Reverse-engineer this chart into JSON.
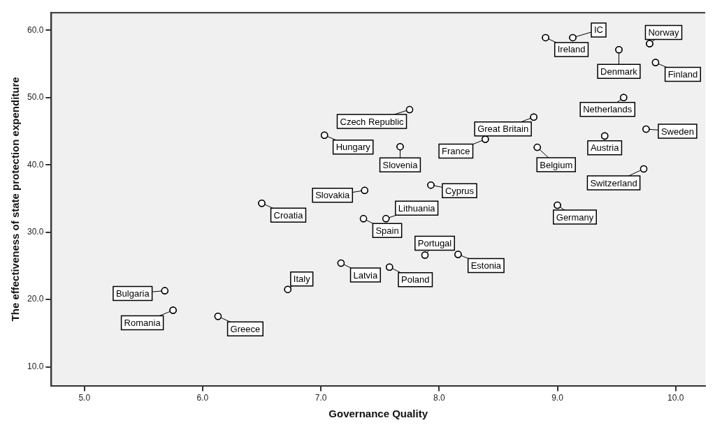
{
  "chart_data": {
    "type": "scatter",
    "xlabel": "Governance Quality",
    "ylabel": "The effectiveness of state protection expenditure",
    "x": [
      9.13,
      8.9,
      9.78,
      9.52,
      9.83,
      9.56,
      7.75,
      8.8,
      9.75,
      7.03,
      9.4,
      8.39,
      7.67,
      8.83,
      9.73,
      7.93,
      7.37,
      6.5,
      9.0,
      7.55,
      7.36,
      7.88,
      8.16,
      7.17,
      7.58,
      6.72,
      5.68,
      5.75,
      6.13
    ],
    "series": [
      {
        "color": "#000000",
        "values": [
          58.9,
          58.9,
          58.0,
          57.1,
          55.2,
          50.0,
          48.2,
          47.1,
          45.3,
          44.4,
          44.3,
          43.8,
          42.7,
          42.6,
          39.4,
          37.0,
          36.2,
          34.3,
          34.0,
          32.0,
          32.0,
          26.6,
          26.7,
          25.4,
          24.8,
          21.5,
          21.3,
          18.4,
          17.5
        ]
      }
    ],
    "xlim": [
      4.72,
      10.25
    ],
    "ylim": [
      7.2,
      62.6
    ],
    "xticks": [
      {
        "value": 5,
        "label": "5.0"
      },
      {
        "value": 6,
        "label": "6.0"
      },
      {
        "value": 7,
        "label": "7.0"
      },
      {
        "value": 8,
        "label": "8.0"
      },
      {
        "value": 9,
        "label": "9.0"
      },
      {
        "value": 10,
        "label": "10.0"
      }
    ],
    "yticks": [
      {
        "value": 10,
        "label": "10.0"
      },
      {
        "value": 20,
        "label": "20.0"
      },
      {
        "value": 30,
        "label": "30.0"
      },
      {
        "value": 40,
        "label": "40.0"
      },
      {
        "value": 50,
        "label": "50.0"
      },
      {
        "value": 60,
        "label": "60.0"
      }
    ],
    "grid": false,
    "legend": false,
    "marker": "circle",
    "annotations": [
      {
        "text": "IC",
        "x": 9.13,
        "y": 58.9
      },
      {
        "text": "Ireland",
        "x": 8.9,
        "y": 58.9
      },
      {
        "text": "Norway",
        "x": 9.78,
        "y": 58.0
      },
      {
        "text": "Denmark",
        "x": 9.52,
        "y": 57.1
      },
      {
        "text": "Finland",
        "x": 9.83,
        "y": 55.2
      },
      {
        "text": "Netherlands",
        "x": 9.56,
        "y": 50.0
      },
      {
        "text": "Czech Republic",
        "x": 7.75,
        "y": 48.2
      },
      {
        "text": "Great Britain",
        "x": 8.8,
        "y": 47.1
      },
      {
        "text": "Sweden",
        "x": 9.75,
        "y": 45.3
      },
      {
        "text": "Hungary",
        "x": 7.03,
        "y": 44.4
      },
      {
        "text": "Austria",
        "x": 9.4,
        "y": 44.3
      },
      {
        "text": "France",
        "x": 8.39,
        "y": 43.8
      },
      {
        "text": "Slovenia",
        "x": 7.67,
        "y": 42.7
      },
      {
        "text": "Belgium",
        "x": 8.83,
        "y": 42.6
      },
      {
        "text": "Switzerland",
        "x": 9.73,
        "y": 39.4
      },
      {
        "text": "Cyprus",
        "x": 7.93,
        "y": 37.0
      },
      {
        "text": "Slovakia",
        "x": 7.37,
        "y": 36.2
      },
      {
        "text": "Croatia",
        "x": 6.5,
        "y": 34.3
      },
      {
        "text": "Germany",
        "x": 9.0,
        "y": 34.0
      },
      {
        "text": "Lithuania",
        "x": 7.55,
        "y": 32.0
      },
      {
        "text": "Spain",
        "x": 7.36,
        "y": 32.0
      },
      {
        "text": "Portugal",
        "x": 7.88,
        "y": 26.6
      },
      {
        "text": "Estonia",
        "x": 8.16,
        "y": 26.7
      },
      {
        "text": "Latvia",
        "x": 7.17,
        "y": 25.4
      },
      {
        "text": "Poland",
        "x": 7.58,
        "y": 24.8
      },
      {
        "text": "Italy",
        "x": 6.72,
        "y": 21.5
      },
      {
        "text": "Bulgaria",
        "x": 5.68,
        "y": 21.3
      },
      {
        "text": "Romania",
        "x": 5.75,
        "y": 18.4
      },
      {
        "text": "Greece",
        "x": 6.13,
        "y": 17.5
      }
    ]
  }
}
